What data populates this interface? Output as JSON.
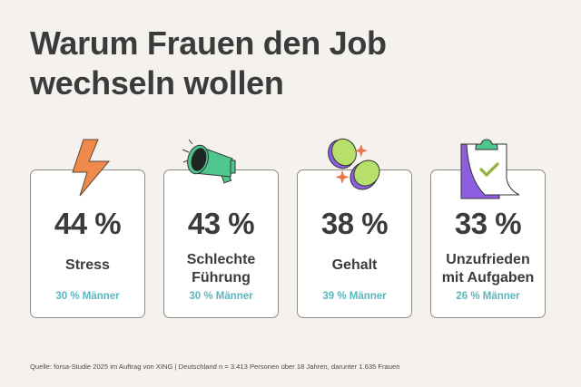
{
  "title": {
    "line1": "Warum Frauen den Job",
    "line2": "wechseln wollen"
  },
  "cards": [
    {
      "icon": "lightning-icon",
      "percent": "44 %",
      "label_lines": [
        "Stress"
      ],
      "men": "30 % Männer"
    },
    {
      "icon": "megaphone-icon",
      "percent": "43 %",
      "label_lines": [
        "Schlechte",
        "Führung"
      ],
      "men": "30 % Männer"
    },
    {
      "icon": "coins-icon",
      "percent": "38 %",
      "label_lines": [
        "Gehalt"
      ],
      "men": "39 % Männer"
    },
    {
      "icon": "clipboard-check-icon",
      "percent": "33 %",
      "label_lines": [
        "Unzufrieden",
        "mit Aufgaben"
      ],
      "men": "26 % Männer"
    }
  ],
  "colors": {
    "background": "#f5f1ec",
    "text": "#3a3b3d",
    "men_accent": "#5bb6bd",
    "lightning": "#f08a4b",
    "megaphone": "#4fc68e",
    "coin": "#b7e06a",
    "coin_edge": "#8d5ee0",
    "clipboard": "#8d5ee0"
  },
  "footer": {
    "source": "Quelle: forsa-Studie 2025 im Auftrag von XING | Deutschland n = 3.413 Personen über 18 Jahren, darunter 1.635 Frauen"
  }
}
